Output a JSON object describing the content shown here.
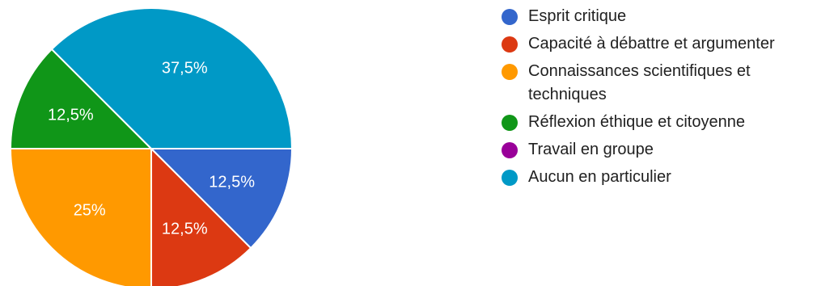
{
  "chart_data": {
    "type": "pie",
    "categories": [
      "Esprit critique",
      "Capacité à débattre et argumenter",
      "Connaissances scientifiques et techniques",
      "Réflexion éthique et citoyenne",
      "Travail en groupe",
      "Aucun en particulier"
    ],
    "values": [
      12.5,
      12.5,
      25,
      12.5,
      0,
      37.5
    ],
    "value_labels": [
      "12,5%",
      "12,5%",
      "25%",
      "12,5%",
      "",
      "37,5%"
    ],
    "colors": [
      "#3366cc",
      "#dc3912",
      "#ff9900",
      "#109618",
      "#990099",
      "#0099c6"
    ],
    "legend_position": "right",
    "start_angle_deg": 90,
    "direction": "clockwise"
  }
}
